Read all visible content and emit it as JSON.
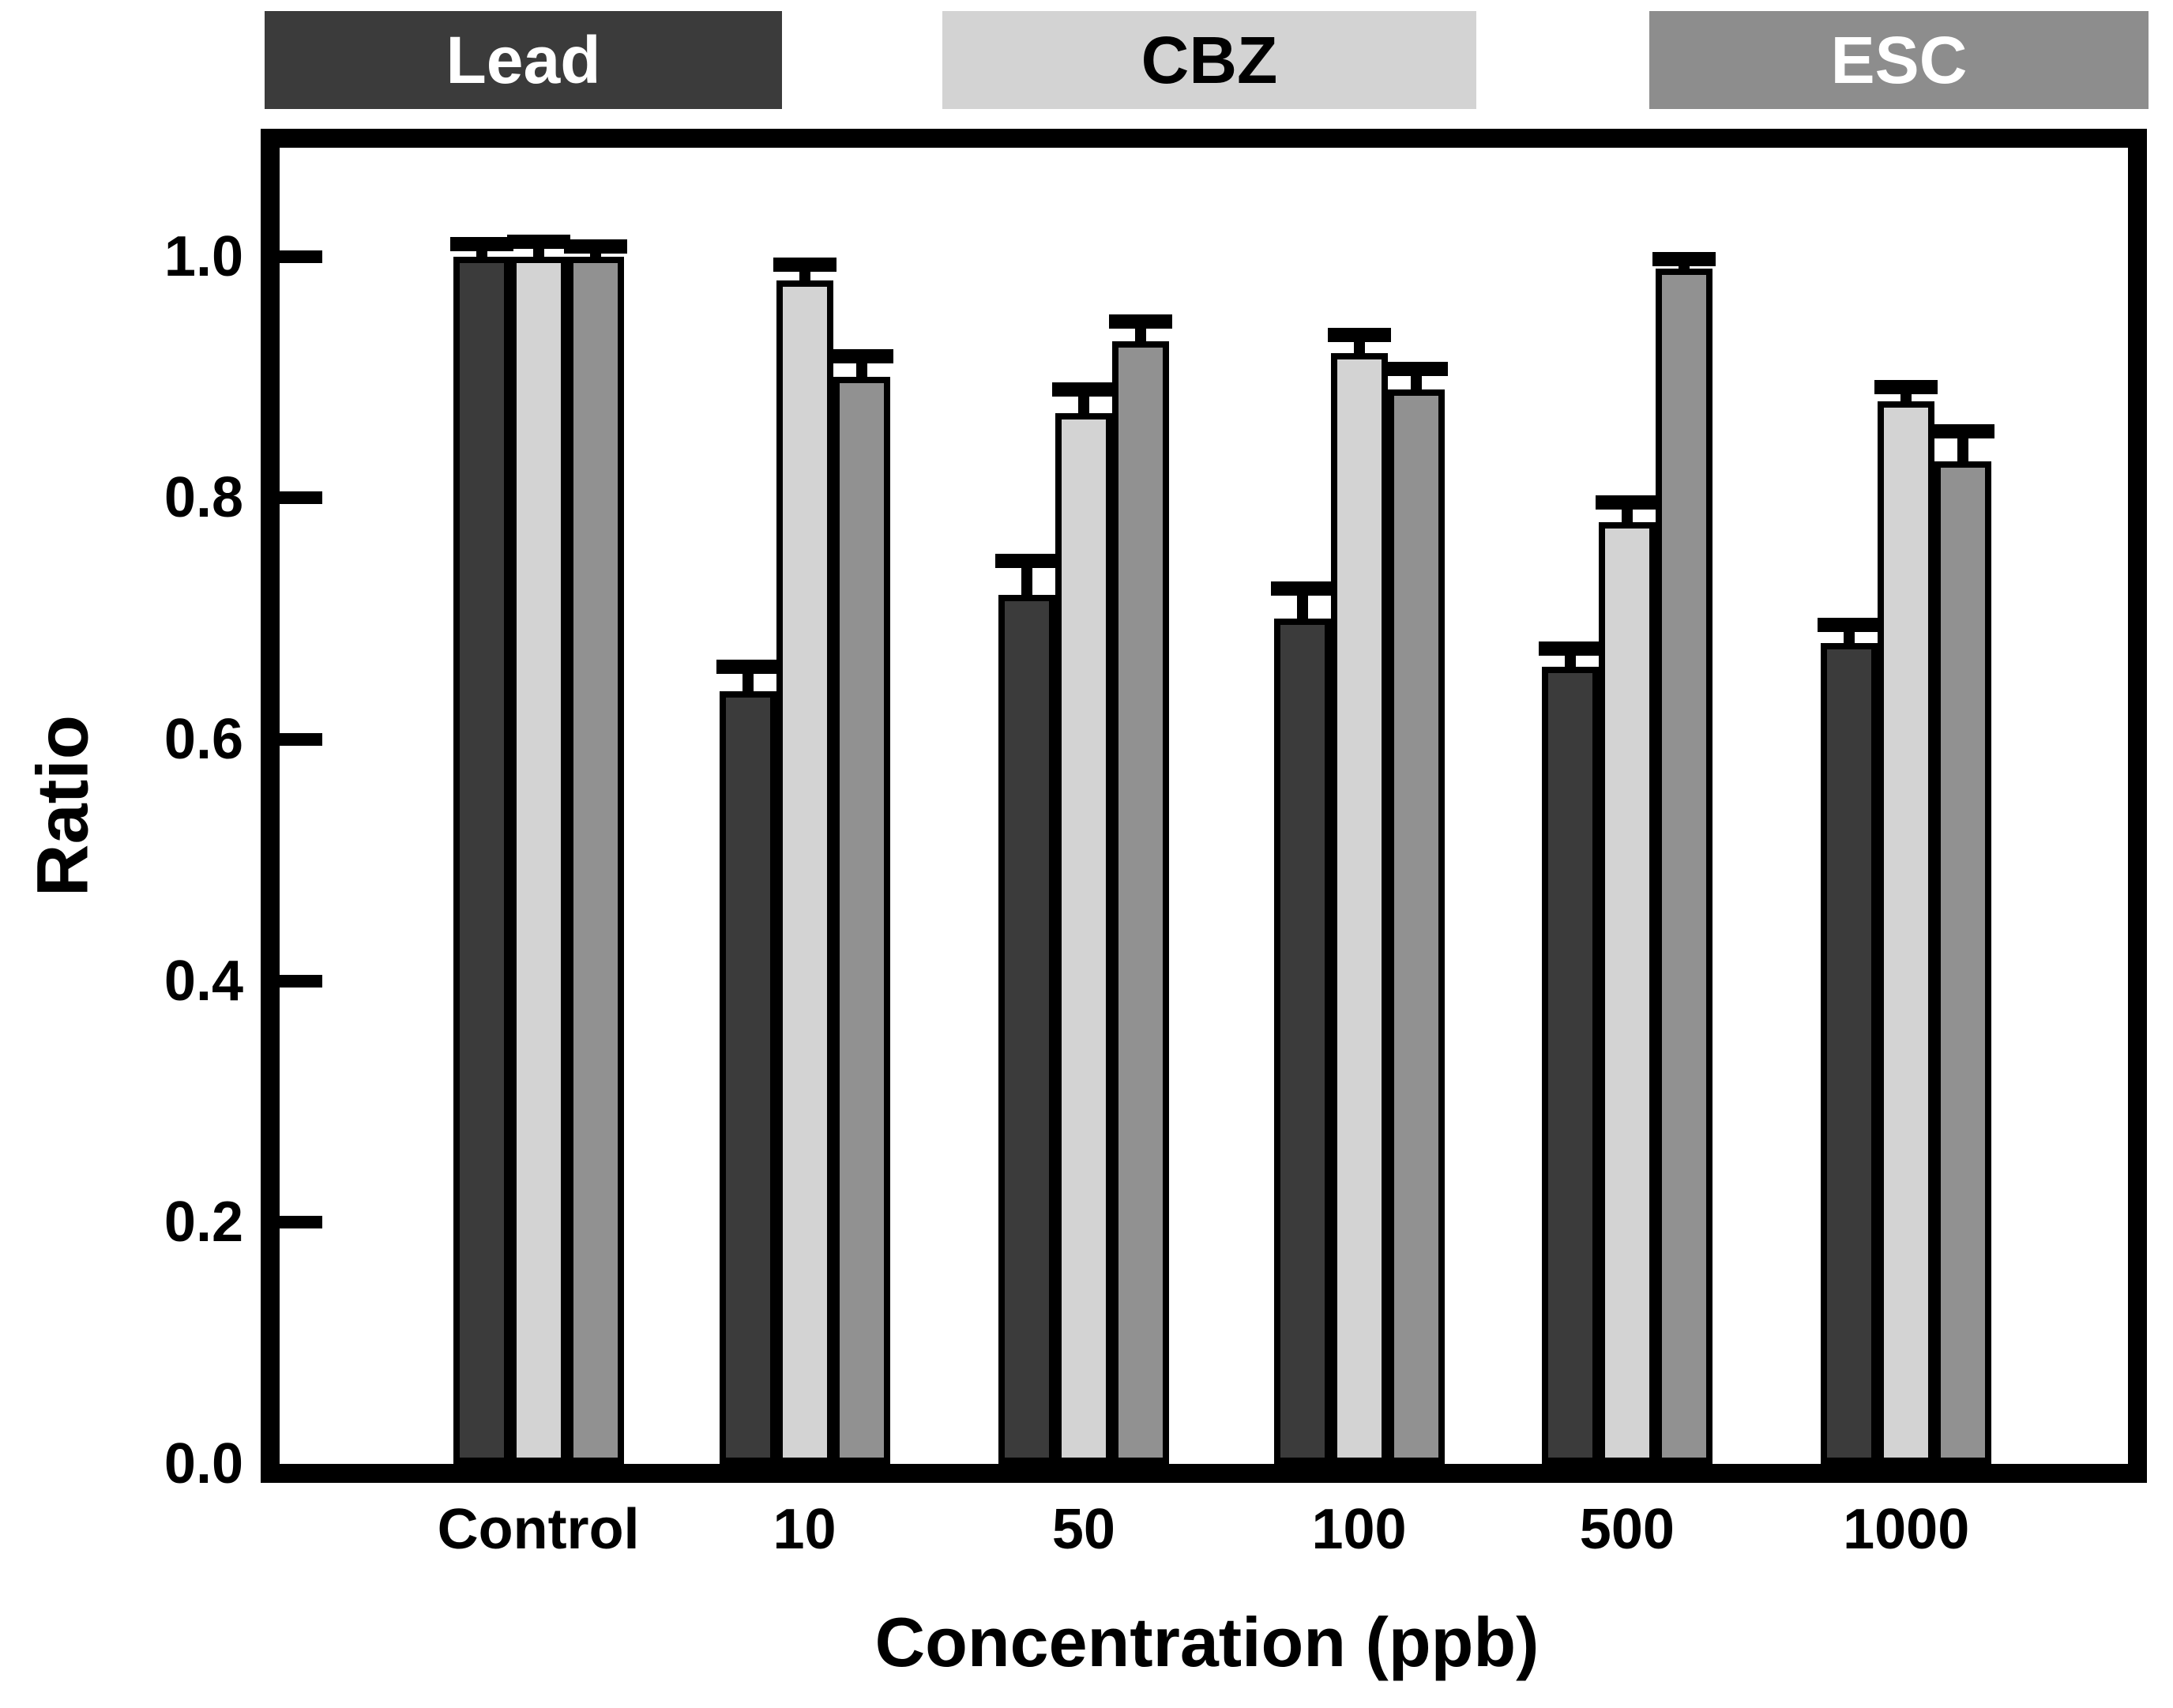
{
  "figure": {
    "background": "#ffffff"
  },
  "legend": {
    "items": [
      {
        "label": "Lead",
        "bg": "#3b3b3b",
        "text_color": "#ffffff"
      },
      {
        "label": "CBZ",
        "bg": "#d3d3d3",
        "text_color": "#000000"
      },
      {
        "label": "ESC",
        "bg": "#8d8d8d",
        "text_color": "#ffffff"
      }
    ]
  },
  "chart_data": {
    "type": "bar",
    "title": "",
    "xlabel": "Concentration (ppb)",
    "ylabel": "Ratio",
    "categories": [
      "Control",
      "10",
      "50",
      "100",
      "500",
      "1000"
    ],
    "series": [
      {
        "name": "Lead",
        "color": "#3b3b3b",
        "values": [
          1.0,
          0.64,
          0.72,
          0.7,
          0.66,
          0.68
        ],
        "errors": [
          0.01,
          0.02,
          0.028,
          0.025,
          0.015,
          0.015
        ]
      },
      {
        "name": "CBZ",
        "color": "#d3d3d3",
        "values": [
          1.0,
          0.98,
          0.87,
          0.92,
          0.78,
          0.88
        ],
        "errors": [
          0.012,
          0.013,
          0.02,
          0.015,
          0.016,
          0.012
        ]
      },
      {
        "name": "ESC",
        "color": "#919191",
        "values": [
          1.0,
          0.9,
          0.93,
          0.89,
          0.99,
          0.83
        ],
        "errors": [
          0.008,
          0.017,
          0.016,
          0.017,
          0.008,
          0.025
        ]
      }
    ],
    "ylim": [
      0.0,
      1.09
    ],
    "yticks": [
      0.0,
      0.2,
      0.4,
      0.6,
      0.8,
      1.0
    ],
    "ytick_decimals": 1,
    "grid": false,
    "legend_position": "top",
    "error_bars": "upper",
    "bar_outline_color": "#000000",
    "frame_color": "#000000",
    "background_color": "#ffffff"
  }
}
